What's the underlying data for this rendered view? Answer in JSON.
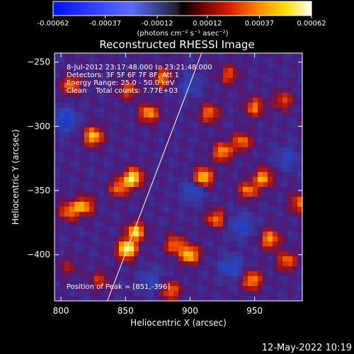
{
  "colorbar": {
    "ticks": [
      "-0.00062",
      "-0.00037",
      "-0.00012",
      "0.00012",
      "0.00037",
      "0.00062"
    ],
    "tick_values": [
      -0.00062,
      -0.00037,
      -0.00012,
      0.00012,
      0.00037,
      0.00062
    ],
    "range": [
      -0.00062,
      0.00062
    ],
    "unit_label": "(photons cm⁻² s⁻¹ asec⁻²)",
    "colors": {
      "negative_low": "#0010ff",
      "negative_high": "#6070ff",
      "zero": "#000000",
      "pos_1": "#5a0000",
      "pos_2": "#d81b00",
      "pos_3": "#ff8c00",
      "pos_4": "#ffe000",
      "positive_high": "#ffffff"
    }
  },
  "chart_data": {
    "type": "heatmap",
    "title": "Reconstructed RHESSI Image",
    "xlabel": "Heliocentric X (arcsec)",
    "ylabel": "Heliocentric Y (arcsec)",
    "xlim": [
      795,
      987
    ],
    "ylim": [
      -436,
      -243
    ],
    "xticks": [
      800,
      850,
      900,
      950
    ],
    "yticks": [
      -250,
      -300,
      -350,
      -400
    ],
    "xtick_labels": [
      "800",
      "850",
      "900",
      "950"
    ],
    "ytick_labels": [
      "−250",
      "−300",
      "−350",
      "−400"
    ],
    "annotations": [
      "8-Jul-2012 23:17:48.000 to 23:21:48.000",
      "Detectors: 3F 5F 6F 7F 8F, Att 1",
      "Energy Range: 25.0 - 50.0 keV",
      "Clean    Total counts: 7.77E+03"
    ],
    "peak_label": "Position of Peak = [851,-396]",
    "peak": [
      851,
      -396
    ],
    "limb_line": [
      [
        836,
        -436
      ],
      [
        909,
        -243
      ]
    ],
    "bright_sources": [
      {
        "x": 851,
        "y": -396,
        "level": 1.0
      },
      {
        "x": 858,
        "y": -382,
        "level": 0.8
      },
      {
        "x": 856,
        "y": -340,
        "level": 0.9
      },
      {
        "x": 845,
        "y": -348,
        "level": 0.6
      },
      {
        "x": 818,
        "y": -362,
        "level": 0.7
      },
      {
        "x": 806,
        "y": -366,
        "level": 0.6
      },
      {
        "x": 825,
        "y": -308,
        "level": 0.8
      },
      {
        "x": 808,
        "y": -268,
        "level": 0.6
      },
      {
        "x": 868,
        "y": -290,
        "level": 0.7
      },
      {
        "x": 879,
        "y": -262,
        "level": 0.6
      },
      {
        "x": 852,
        "y": -272,
        "level": 0.5
      },
      {
        "x": 910,
        "y": -340,
        "level": 0.9
      },
      {
        "x": 925,
        "y": -320,
        "level": 0.7
      },
      {
        "x": 920,
        "y": -372,
        "level": 0.6
      },
      {
        "x": 900,
        "y": -400,
        "level": 0.8
      },
      {
        "x": 888,
        "y": -392,
        "level": 0.6
      },
      {
        "x": 957,
        "y": -340,
        "level": 0.7
      },
      {
        "x": 945,
        "y": -350,
        "level": 0.6
      },
      {
        "x": 962,
        "y": -388,
        "level": 0.7
      },
      {
        "x": 975,
        "y": -405,
        "level": 0.6
      },
      {
        "x": 940,
        "y": -312,
        "level": 0.6
      },
      {
        "x": 950,
        "y": -285,
        "level": 0.6
      },
      {
        "x": 972,
        "y": -280,
        "level": 0.5
      },
      {
        "x": 915,
        "y": -290,
        "level": 0.6
      },
      {
        "x": 930,
        "y": -260,
        "level": 0.5
      },
      {
        "x": 948,
        "y": -420,
        "level": 0.7
      },
      {
        "x": 885,
        "y": -428,
        "level": 0.6
      },
      {
        "x": 985,
        "y": -360,
        "level": 0.6
      },
      {
        "x": 830,
        "y": -420,
        "level": 0.4
      },
      {
        "x": 805,
        "y": -410,
        "level": 0.3
      }
    ],
    "dark_regions": [
      {
        "x": 803,
        "y": -295,
        "level": 0.5
      },
      {
        "x": 903,
        "y": -350,
        "level": 0.4
      },
      {
        "x": 940,
        "y": -378,
        "level": 0.4
      },
      {
        "x": 932,
        "y": -410,
        "level": 0.4
      },
      {
        "x": 975,
        "y": -325,
        "level": 0.3
      },
      {
        "x": 900,
        "y": -268,
        "level": 0.3
      },
      {
        "x": 870,
        "y": -420,
        "level": 0.3
      }
    ]
  },
  "footer": {
    "timestamp": "12-May-2022 10:19"
  }
}
